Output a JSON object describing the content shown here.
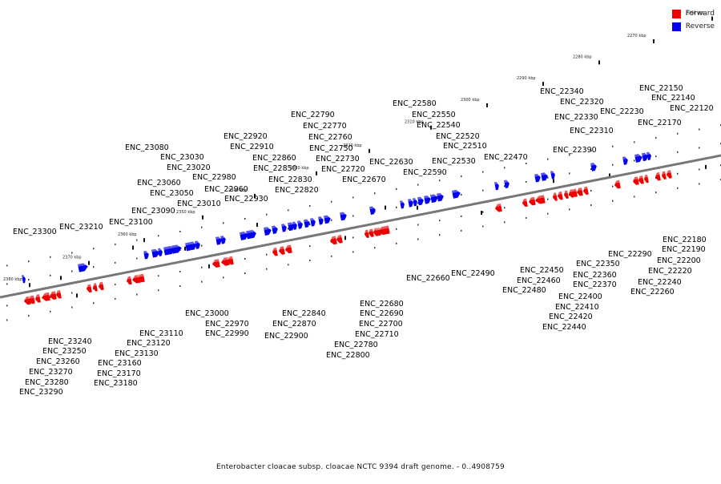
{
  "legend": {
    "forward_label": "Forward",
    "reverse_label": "Reverse",
    "forward_color": "#ee0000",
    "reverse_color": "#0000ee"
  },
  "caption": "Enterobacter cloacae subsp. cloacae NCTC 9394 draft genome. - 0..4908759",
  "axis": {
    "backbone_color": "#777777",
    "ticks": [
      "2380 kbp",
      "2370 kbp",
      "2360 kbp",
      "2350 kbp",
      "2340 kbp",
      "2330 kbp",
      "2320 kbp",
      "2310 kbp",
      "2300 kbp",
      "2290 kbp",
      "2280 kbp",
      "2270 kbp",
      "2260 kbp"
    ]
  },
  "reverse_genes": [
    {
      "name": "ENC_23300"
    },
    {
      "name": "ENC_23210"
    },
    {
      "name": "ENC_23100"
    },
    {
      "name": "ENC_23090"
    },
    {
      "name": "ENC_23080"
    },
    {
      "name": "ENC_23060"
    },
    {
      "name": "ENC_23050"
    },
    {
      "name": "ENC_23030"
    },
    {
      "name": "ENC_23020"
    },
    {
      "name": "ENC_23010"
    },
    {
      "name": "ENC_22980"
    },
    {
      "name": "ENC_22960"
    },
    {
      "name": "ENC_22930"
    },
    {
      "name": "ENC_22920"
    },
    {
      "name": "ENC_22910"
    },
    {
      "name": "ENC_22860"
    },
    {
      "name": "ENC_22850"
    },
    {
      "name": "ENC_22830"
    },
    {
      "name": "ENC_22820"
    },
    {
      "name": "ENC_22790"
    },
    {
      "name": "ENC_22770"
    },
    {
      "name": "ENC_22760"
    },
    {
      "name": "ENC_22750"
    },
    {
      "name": "ENC_22730"
    },
    {
      "name": "ENC_22720"
    },
    {
      "name": "ENC_22670"
    },
    {
      "name": "ENC_22630"
    },
    {
      "name": "ENC_22590"
    },
    {
      "name": "ENC_22580"
    },
    {
      "name": "ENC_22550"
    },
    {
      "name": "ENC_22540"
    },
    {
      "name": "ENC_22530"
    },
    {
      "name": "ENC_22520"
    },
    {
      "name": "ENC_22510"
    },
    {
      "name": "ENC_22470"
    },
    {
      "name": "ENC_22390"
    },
    {
      "name": "ENC_22340"
    },
    {
      "name": "ENC_22320"
    },
    {
      "name": "ENC_22330"
    },
    {
      "name": "ENC_22310"
    },
    {
      "name": "ENC_22230"
    },
    {
      "name": "ENC_22170"
    },
    {
      "name": "ENC_22150"
    },
    {
      "name": "ENC_22140"
    },
    {
      "name": "ENC_22120"
    }
  ],
  "forward_genes": [
    {
      "name": "ENC_23240"
    },
    {
      "name": "ENC_23250"
    },
    {
      "name": "ENC_23260"
    },
    {
      "name": "ENC_23270"
    },
    {
      "name": "ENC_23280"
    },
    {
      "name": "ENC_23290"
    },
    {
      "name": "ENC_23110"
    },
    {
      "name": "ENC_23120"
    },
    {
      "name": "ENC_23130"
    },
    {
      "name": "ENC_23160"
    },
    {
      "name": "ENC_23170"
    },
    {
      "name": "ENC_23180"
    },
    {
      "name": "ENC_23000"
    },
    {
      "name": "ENC_22970"
    },
    {
      "name": "ENC_22990"
    },
    {
      "name": "ENC_22840"
    },
    {
      "name": "ENC_22870"
    },
    {
      "name": "ENC_22900"
    },
    {
      "name": "ENC_22780"
    },
    {
      "name": "ENC_22800"
    },
    {
      "name": "ENC_22680"
    },
    {
      "name": "ENC_22690"
    },
    {
      "name": "ENC_22700"
    },
    {
      "name": "ENC_22710"
    },
    {
      "name": "ENC_22660"
    },
    {
      "name": "ENC_22490"
    },
    {
      "name": "ENC_22450"
    },
    {
      "name": "ENC_22460"
    },
    {
      "name": "ENC_22480"
    },
    {
      "name": "ENC_22350"
    },
    {
      "name": "ENC_22360"
    },
    {
      "name": "ENC_22370"
    },
    {
      "name": "ENC_22400"
    },
    {
      "name": "ENC_22410"
    },
    {
      "name": "ENC_22420"
    },
    {
      "name": "ENC_22440"
    },
    {
      "name": "ENC_22290"
    },
    {
      "name": "ENC_22180"
    },
    {
      "name": "ENC_22190"
    },
    {
      "name": "ENC_22200"
    },
    {
      "name": "ENC_22220"
    },
    {
      "name": "ENC_22240"
    },
    {
      "name": "ENC_22260"
    }
  ]
}
